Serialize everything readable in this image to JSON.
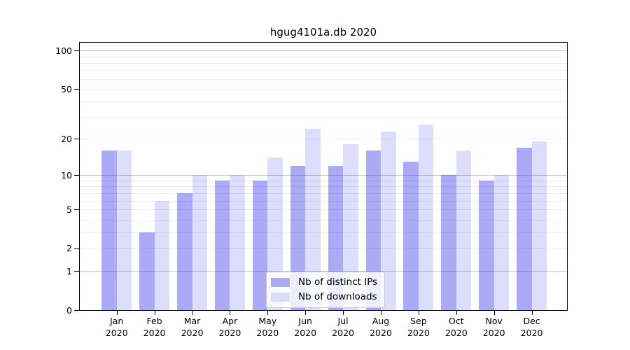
{
  "title": "hgug4101a.db 2020",
  "legend": {
    "items": [
      {
        "label": "Nb of distinct IPs",
        "swatch_color": "#aaaaf7"
      },
      {
        "label": "Nb of downloads",
        "swatch_color": "#ddddf9"
      }
    ]
  },
  "axes": {
    "y_tick_labels": [
      "100",
      "50",
      "20",
      "10",
      "5",
      "2",
      "1",
      "0"
    ],
    "y_tick_values": [
      100,
      50,
      20,
      10,
      5,
      2,
      1,
      0
    ],
    "y_gridlines_major": [
      1,
      10,
      100
    ],
    "y_gridlines_minor": [
      2,
      3,
      4,
      5,
      6,
      7,
      8,
      9,
      20,
      30,
      40,
      50,
      60,
      70,
      80,
      90,
      110
    ],
    "x_year_label": "2020"
  },
  "colors": {
    "bar_ips_fill": "rgba(0,0,230,0.335)",
    "bar_downloads_fill": "rgba(0,0,230,0.135)",
    "grid_major": "#c9c9c9",
    "grid_minor": "#ededed",
    "frame": "#000000"
  },
  "chart_data": {
    "type": "bar",
    "title": "hgug4101a.db 2020",
    "categories": [
      "Jan 2020",
      "Feb 2020",
      "Mar 2020",
      "Apr 2020",
      "May 2020",
      "Jun 2020",
      "Jul 2020",
      "Aug 2020",
      "Sep 2020",
      "Oct 2020",
      "Nov 2020",
      "Dec 2020"
    ],
    "series": [
      {
        "name": "Nb of distinct IPs",
        "values": [
          16,
          3,
          7,
          9,
          9,
          12,
          12,
          16,
          13,
          10,
          9,
          17
        ],
        "color": "#aaaaf7"
      },
      {
        "name": "Nb of downloads",
        "values": [
          16,
          6,
          10,
          10,
          14,
          24,
          18,
          23,
          26,
          16,
          10,
          19
        ],
        "color": "#ddddf9"
      }
    ],
    "xlabel": "",
    "ylabel": "",
    "yscale": "log1p",
    "y_ticks": [
      0,
      1,
      2,
      5,
      10,
      20,
      50,
      100
    ],
    "ylim": [
      0,
      115
    ],
    "grid": true,
    "legend_position": "lower center"
  }
}
